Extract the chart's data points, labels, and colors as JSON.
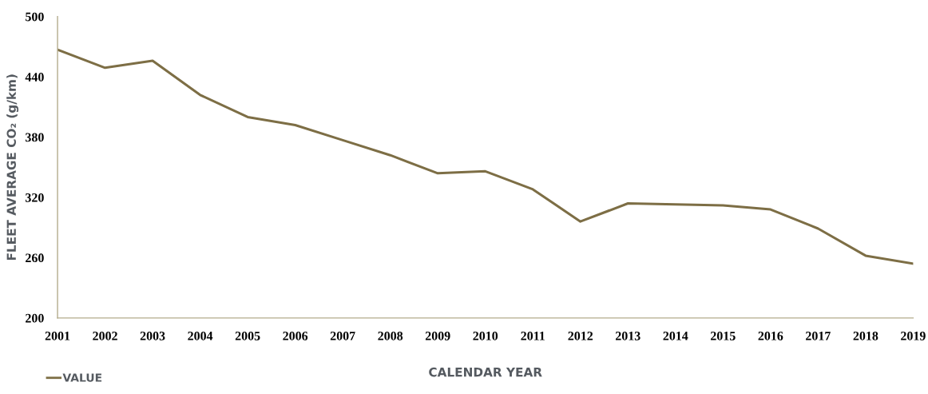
{
  "chart_data": {
    "type": "line",
    "xlabel": "CALENDAR YEAR",
    "ylabel": "FLEET AVERAGE CO₂ (g/km)",
    "categories": [
      "2001",
      "2002",
      "2003",
      "2004",
      "2005",
      "2006",
      "2007",
      "2008",
      "2009",
      "2010",
      "2011",
      "2012",
      "2013",
      "2014",
      "2015",
      "2016",
      "2017",
      "2018",
      "2019"
    ],
    "series": [
      {
        "name": "VALUE",
        "color": "#7d6e45",
        "values": [
          467,
          449,
          456,
          422,
          400,
          392,
          377,
          362,
          344,
          346,
          328,
          296,
          314,
          313,
          312,
          308,
          289,
          262,
          254
        ]
      }
    ],
    "ylim": [
      200,
      500
    ],
    "yticks": [
      200,
      260,
      320,
      380,
      440,
      500
    ],
    "grid": false,
    "legend": "bottom left",
    "marker": "none",
    "line_style": "solid"
  }
}
